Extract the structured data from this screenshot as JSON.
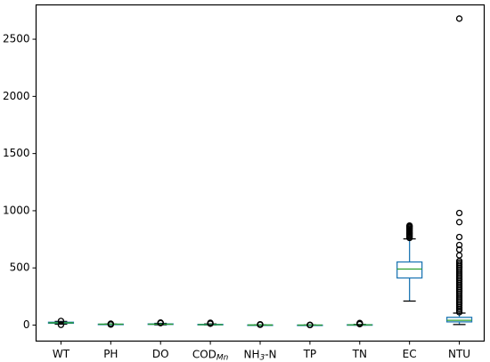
{
  "chart_data": {
    "type": "box",
    "categories": [
      "WT",
      "PH",
      "DO",
      [
        "COD",
        "Mn"
      ],
      [
        "NH",
        "3",
        "-N"
      ],
      "TP",
      "TN",
      "EC",
      "NTU"
    ],
    "boxes": [
      {
        "min": 8,
        "q1": 16,
        "median": 20,
        "q3": 25,
        "max": 32,
        "outliers": [
          2,
          36
        ]
      },
      {
        "min": 6.5,
        "q1": 7.2,
        "median": 7.6,
        "q3": 8,
        "max": 8.8,
        "outliers": [
          5,
          10,
          12
        ]
      },
      {
        "min": 2,
        "q1": 6,
        "median": 8,
        "q3": 10,
        "max": 15,
        "outliers": [
          17,
          19,
          22
        ]
      },
      {
        "min": 1,
        "q1": 3,
        "median": 4,
        "q3": 6,
        "max": 10,
        "outliers": [
          12,
          15,
          20
        ]
      },
      {
        "min": 0,
        "q1": 0.2,
        "median": 0.5,
        "q3": 1,
        "max": 2,
        "outliers": [
          3,
          5,
          7
        ]
      },
      {
        "min": 0,
        "q1": 0.05,
        "median": 0.1,
        "q3": 0.2,
        "max": 0.4,
        "outliers": [
          0.6,
          1,
          2
        ]
      },
      {
        "min": 0,
        "q1": 1,
        "median": 2,
        "q3": 3,
        "max": 6,
        "outliers": [
          8,
          12,
          18
        ]
      },
      {
        "min": 210,
        "q1": 412,
        "median": 490,
        "q3": 552,
        "max": 754,
        "outliers": [
          762,
          772,
          782,
          792,
          802,
          812,
          822,
          832,
          842,
          852,
          862,
          870
        ]
      },
      {
        "min": 5,
        "q1": 28,
        "median": 42,
        "q3": 68,
        "max": 105,
        "outliers": [
          112,
          125,
          140,
          155,
          170,
          185,
          200,
          215,
          230,
          245,
          260,
          275,
          290,
          305,
          320,
          335,
          350,
          365,
          380,
          395,
          410,
          425,
          440,
          455,
          470,
          485,
          500,
          515,
          530,
          545,
          560,
          610,
          660,
          700,
          770,
          900,
          980,
          2680
        ]
      }
    ],
    "colors": {
      "box": "#1f77b4",
      "whisker": "#1f77b4",
      "cap": "#000000",
      "median": "#2ca02c",
      "outlier": "#000000"
    },
    "ylim": [
      -140,
      2800
    ],
    "yticks": [
      0,
      500,
      1000,
      1500,
      2000,
      2500
    ]
  }
}
